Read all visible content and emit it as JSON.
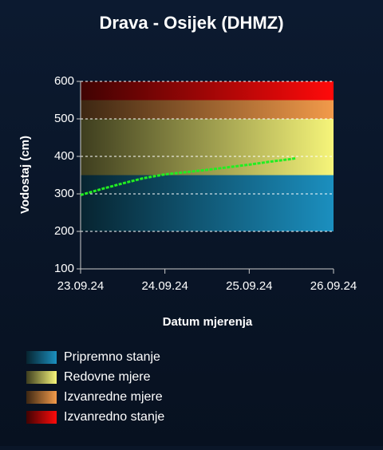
{
  "chart_data": {
    "type": "line",
    "title": "Drava - Osijek (DHMZ)",
    "y_label": "Vodostaj (cm)",
    "x_label": "Datum mjerenja",
    "x": [
      0,
      0.25,
      0.5,
      0.75,
      1,
      1.25,
      1.5,
      1.75,
      2,
      2.25,
      2.5,
      2.55
    ],
    "series": [
      {
        "color": "#22ee22",
        "values": [
          297,
          313,
          328,
          342,
          352,
          358,
          364,
          371,
          378,
          386,
          393,
          395
        ]
      }
    ],
    "xlim": [
      0,
      3
    ],
    "xticks": [
      {
        "value": 0,
        "label": "23.09.24"
      },
      {
        "value": 1,
        "label": "24.09.24"
      },
      {
        "value": 2,
        "label": "25.09.24"
      },
      {
        "value": 3,
        "label": "26.09.24"
      }
    ],
    "ylim": [
      100,
      600
    ],
    "yticks": [
      100,
      200,
      300,
      400,
      500,
      600
    ],
    "grid": true,
    "bands": [
      {
        "name": "Pripremno stanje",
        "from": 200,
        "to": 350,
        "color": "#1b8fbf"
      },
      {
        "name": "Redovne mjere",
        "from": 350,
        "to": 500,
        "color": "#f6f57a"
      },
      {
        "name": "Izvanredne mjere",
        "from": 500,
        "to": 550,
        "color": "#f29a4a"
      },
      {
        "name": "Izvanredno stanje",
        "from": 550,
        "to": 600,
        "color": "#ff0a0a"
      }
    ]
  }
}
